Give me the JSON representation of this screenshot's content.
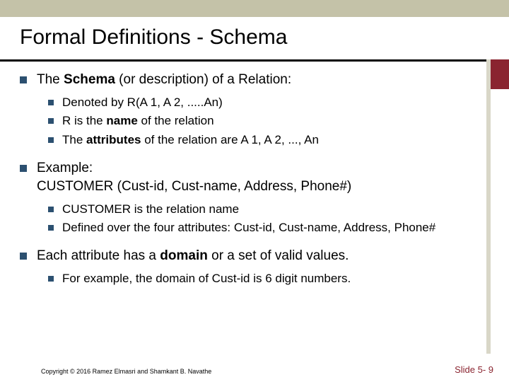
{
  "colors": {
    "top_bar": "#c4c2a8",
    "title_underline": "#000000",
    "accent_box": "#8a2430",
    "accent_line": "#d9d7c8",
    "bullet": "#2c5070",
    "slide_num": "#8a2430",
    "background": "#ffffff"
  },
  "title": "Formal Definitions - Schema",
  "bullets": [
    {
      "level": 1,
      "runs": [
        {
          "t": "The ",
          "b": false
        },
        {
          "t": "Schema",
          "b": true
        },
        {
          "t": " (or description) of a Relation:",
          "b": false
        }
      ]
    },
    {
      "level": 2,
      "runs": [
        {
          "t": "Denoted by R(A 1, A 2, .....An)",
          "b": false
        }
      ]
    },
    {
      "level": 2,
      "runs": [
        {
          "t": "R is the ",
          "b": false
        },
        {
          "t": "name",
          "b": true
        },
        {
          "t": " of the relation",
          "b": false
        }
      ]
    },
    {
      "level": 2,
      "runs": [
        {
          "t": "The ",
          "b": false
        },
        {
          "t": "attributes",
          "b": true
        },
        {
          "t": " of the relation are A 1, A 2, ..., An",
          "b": false
        }
      ]
    },
    {
      "level": 1,
      "runs": [
        {
          "t": "Example:",
          "b": false
        }
      ],
      "cont": [
        {
          "t": "CUSTOMER (Cust-id, Cust-name, Address, Phone#)",
          "b": false
        }
      ]
    },
    {
      "level": 2,
      "runs": [
        {
          "t": "CUSTOMER is the relation name",
          "b": false
        }
      ]
    },
    {
      "level": 2,
      "runs": [
        {
          "t": "Defined over the four attributes: Cust-id, Cust-name, Address, Phone#",
          "b": false
        }
      ]
    },
    {
      "level": 1,
      "runs": [
        {
          "t": "Each attribute has a ",
          "b": false
        },
        {
          "t": "domain",
          "b": true
        },
        {
          "t": " or a set of valid values.",
          "b": false
        }
      ]
    },
    {
      "level": 2,
      "runs": [
        {
          "t": "For example, the domain of Cust-id is 6 digit numbers.",
          "b": false
        }
      ]
    }
  ],
  "footer": {
    "copyright": "Copyright © 2016 Ramez Elmasri and Shamkant B. Navathe",
    "slide_num": "Slide 5- 9"
  }
}
